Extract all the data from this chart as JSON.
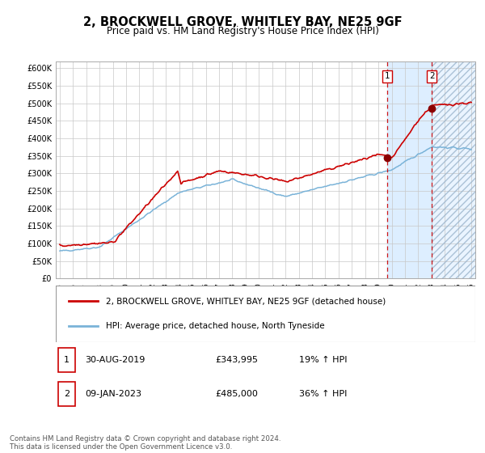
{
  "title": "2, BROCKWELL GROVE, WHITLEY BAY, NE25 9GF",
  "subtitle": "Price paid vs. HM Land Registry's House Price Index (HPI)",
  "ylim": [
    0,
    620000
  ],
  "yticks": [
    0,
    50000,
    100000,
    150000,
    200000,
    250000,
    300000,
    350000,
    400000,
    450000,
    500000,
    550000,
    600000
  ],
  "ytick_labels": [
    "£0",
    "£50K",
    "£100K",
    "£150K",
    "£200K",
    "£250K",
    "£300K",
    "£350K",
    "£400K",
    "£450K",
    "£500K",
    "£550K",
    "£600K"
  ],
  "xlim_start": 1994.7,
  "xlim_end": 2026.3,
  "xticks": [
    1995,
    1996,
    1997,
    1998,
    1999,
    2000,
    2001,
    2002,
    2003,
    2004,
    2005,
    2006,
    2007,
    2008,
    2009,
    2010,
    2011,
    2012,
    2013,
    2014,
    2015,
    2016,
    2017,
    2018,
    2019,
    2020,
    2021,
    2022,
    2023,
    2024,
    2025,
    2026
  ],
  "hpi_color": "#7ab3d8",
  "price_color": "#cc0000",
  "marker_color": "#8b0000",
  "dashed_line_color": "#cc0000",
  "background_color": "#ffffff",
  "grid_color": "#c8c8c8",
  "shaded_region_color": "#ddeeff",
  "sale1_date_num": 2019.66,
  "sale1_price": 343995,
  "sale2_date_num": 2023.03,
  "sale2_price": 485000,
  "legend1_label": "2, BROCKWELL GROVE, WHITLEY BAY, NE25 9GF (detached house)",
  "legend2_label": "HPI: Average price, detached house, North Tyneside",
  "table_row1": [
    "1",
    "30-AUG-2019",
    "£343,995",
    "19% ↑ HPI"
  ],
  "table_row2": [
    "2",
    "09-JAN-2023",
    "£485,000",
    "36% ↑ HPI"
  ],
  "footer_text": "Contains HM Land Registry data © Crown copyright and database right 2024.\nThis data is licensed under the Open Government Licence v3.0.",
  "label1": "1",
  "label2": "2"
}
